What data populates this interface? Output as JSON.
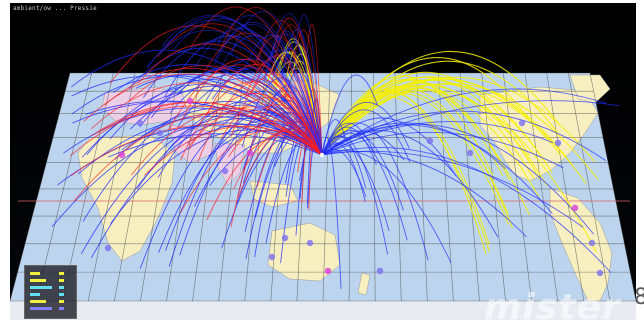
{
  "window_title": "ambient/ow ... Pressie",
  "watermark_text": "mister",
  "edge_digit": "8",
  "colors": {
    "background": "#000000",
    "ocean": "#bcd4ee",
    "land_main": "#f7efc0",
    "land_alt": "#eccfe6",
    "grid": "#4a4a4a",
    "equator": "#d86060",
    "arc_blue": "#1e2bff",
    "arc_red": "#ff2020",
    "arc_yellow": "#f6f000",
    "legend_bg": "#282830"
  },
  "legend": {
    "rows": [
      "#f0f040",
      "#f0f040",
      "#60e0f0",
      "#60e0f0",
      "#f0f040",
      "#8080ff"
    ]
  },
  "icons": [
    "world-map-icon"
  ]
}
